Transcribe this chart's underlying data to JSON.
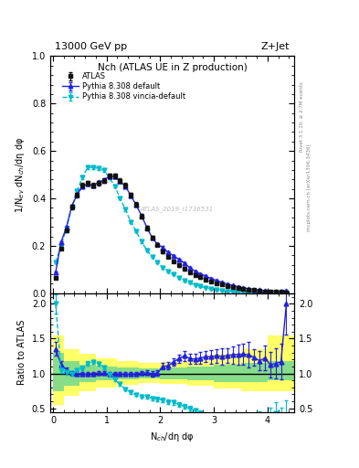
{
  "title_left": "13000 GeV pp",
  "title_right": "Z+Jet",
  "plot_title": "Nch (ATLAS UE in Z production)",
  "ylabel_main": "1/N$_{ev}$ dN$_{ch}$/dη dφ",
  "ylabel_ratio": "Ratio to ATLAS",
  "xlabel": "N$_{ch}$/dη dφ",
  "right_label_top": "Rivet 3.1.10, ≥ 2.7M events",
  "right_label_bot": "mcplots.cern.ch [arXiv:1306.3436]",
  "watermark": "ATLAS_2019_I1736531",
  "legend": [
    "ATLAS",
    "Pythia 8.308 default",
    "Pythia 8.308 vincia-default"
  ],
  "atlas_x": [
    0.05,
    0.15,
    0.25,
    0.35,
    0.45,
    0.55,
    0.65,
    0.75,
    0.85,
    0.95,
    1.05,
    1.15,
    1.25,
    1.35,
    1.45,
    1.55,
    1.65,
    1.75,
    1.85,
    1.95,
    2.05,
    2.15,
    2.25,
    2.35,
    2.45,
    2.55,
    2.65,
    2.75,
    2.85,
    2.95,
    3.05,
    3.15,
    3.25,
    3.35,
    3.45,
    3.55,
    3.65,
    3.75,
    3.85,
    3.95,
    4.05,
    4.15,
    4.25,
    4.35
  ],
  "atlas_y": [
    0.065,
    0.19,
    0.265,
    0.365,
    0.415,
    0.455,
    0.465,
    0.455,
    0.465,
    0.475,
    0.495,
    0.495,
    0.475,
    0.455,
    0.415,
    0.375,
    0.325,
    0.275,
    0.235,
    0.205,
    0.175,
    0.155,
    0.135,
    0.118,
    0.102,
    0.089,
    0.077,
    0.067,
    0.058,
    0.05,
    0.043,
    0.037,
    0.031,
    0.026,
    0.022,
    0.018,
    0.015,
    0.013,
    0.011,
    0.009,
    0.008,
    0.007,
    0.006,
    0.005
  ],
  "atlas_yerr": [
    0.004,
    0.007,
    0.008,
    0.009,
    0.009,
    0.01,
    0.01,
    0.01,
    0.01,
    0.01,
    0.01,
    0.01,
    0.01,
    0.01,
    0.009,
    0.009,
    0.008,
    0.008,
    0.007,
    0.007,
    0.006,
    0.006,
    0.005,
    0.005,
    0.005,
    0.004,
    0.004,
    0.004,
    0.003,
    0.003,
    0.003,
    0.003,
    0.002,
    0.002,
    0.002,
    0.002,
    0.002,
    0.001,
    0.001,
    0.001,
    0.001,
    0.001,
    0.001,
    0.001
  ],
  "py8_x": [
    0.05,
    0.15,
    0.25,
    0.35,
    0.45,
    0.55,
    0.65,
    0.75,
    0.85,
    0.95,
    1.05,
    1.15,
    1.25,
    1.35,
    1.45,
    1.55,
    1.65,
    1.75,
    1.85,
    1.95,
    2.05,
    2.15,
    2.25,
    2.35,
    2.45,
    2.55,
    2.65,
    2.75,
    2.85,
    2.95,
    3.05,
    3.15,
    3.25,
    3.35,
    3.45,
    3.55,
    3.65,
    3.75,
    3.85,
    3.95,
    4.05,
    4.15,
    4.25,
    4.35
  ],
  "py8_y": [
    0.088,
    0.215,
    0.278,
    0.368,
    0.415,
    0.452,
    0.461,
    0.455,
    0.468,
    0.477,
    0.494,
    0.492,
    0.472,
    0.452,
    0.412,
    0.373,
    0.328,
    0.278,
    0.234,
    0.206,
    0.193,
    0.172,
    0.158,
    0.143,
    0.128,
    0.108,
    0.093,
    0.082,
    0.072,
    0.062,
    0.054,
    0.046,
    0.039,
    0.033,
    0.028,
    0.023,
    0.019,
    0.016,
    0.013,
    0.011,
    0.009,
    0.008,
    0.007,
    0.01
  ],
  "py8_yerr": [
    0.003,
    0.005,
    0.006,
    0.007,
    0.007,
    0.007,
    0.007,
    0.007,
    0.007,
    0.007,
    0.007,
    0.007,
    0.007,
    0.007,
    0.006,
    0.006,
    0.006,
    0.005,
    0.005,
    0.005,
    0.005,
    0.005,
    0.004,
    0.004,
    0.004,
    0.004,
    0.003,
    0.003,
    0.003,
    0.003,
    0.002,
    0.002,
    0.002,
    0.002,
    0.002,
    0.001,
    0.001,
    0.001,
    0.001,
    0.001,
    0.001,
    0.001,
    0.001,
    0.001
  ],
  "vincia_x": [
    0.05,
    0.15,
    0.25,
    0.35,
    0.45,
    0.55,
    0.65,
    0.75,
    0.85,
    0.95,
    1.05,
    1.15,
    1.25,
    1.35,
    1.45,
    1.55,
    1.65,
    1.75,
    1.85,
    1.95,
    2.05,
    2.15,
    2.25,
    2.35,
    2.45,
    2.55,
    2.65,
    2.75,
    2.85,
    2.95,
    3.05,
    3.15,
    3.25,
    3.35,
    3.45,
    3.55,
    3.65,
    3.75,
    3.85,
    3.95,
    4.05,
    4.15,
    4.25,
    4.35
  ],
  "vincia_y": [
    0.13,
    0.2,
    0.272,
    0.363,
    0.432,
    0.49,
    0.532,
    0.53,
    0.528,
    0.518,
    0.488,
    0.452,
    0.402,
    0.353,
    0.302,
    0.262,
    0.218,
    0.182,
    0.152,
    0.13,
    0.108,
    0.092,
    0.079,
    0.065,
    0.054,
    0.044,
    0.036,
    0.029,
    0.023,
    0.018,
    0.014,
    0.011,
    0.009,
    0.008,
    0.007,
    0.006,
    0.005,
    0.004,
    0.004,
    0.003,
    0.003,
    0.003,
    0.002,
    0.002
  ],
  "vincia_yerr": [
    0.004,
    0.006,
    0.007,
    0.007,
    0.007,
    0.007,
    0.007,
    0.007,
    0.007,
    0.007,
    0.007,
    0.007,
    0.006,
    0.006,
    0.006,
    0.005,
    0.005,
    0.005,
    0.004,
    0.004,
    0.004,
    0.004,
    0.003,
    0.003,
    0.003,
    0.003,
    0.002,
    0.002,
    0.002,
    0.002,
    0.002,
    0.001,
    0.001,
    0.001,
    0.001,
    0.001,
    0.001,
    0.001,
    0.001,
    0.001,
    0.001,
    0.001,
    0.001,
    0.001
  ],
  "band_edges": [
    0.0,
    0.2,
    0.5,
    0.8,
    1.2,
    1.6,
    2.0,
    2.5,
    3.0,
    3.5,
    4.0,
    4.5
  ],
  "green_lo": [
    0.75,
    0.82,
    0.88,
    0.9,
    0.92,
    0.93,
    0.92,
    0.9,
    0.88,
    0.88,
    0.9,
    0.9
  ],
  "green_hi": [
    1.3,
    1.18,
    1.12,
    1.1,
    1.08,
    1.07,
    1.08,
    1.1,
    1.12,
    1.15,
    1.18,
    1.18
  ],
  "yellow_lo": [
    0.55,
    0.68,
    0.75,
    0.8,
    0.84,
    0.86,
    0.85,
    0.82,
    0.78,
    0.75,
    0.75,
    0.75
  ],
  "yellow_hi": [
    1.55,
    1.35,
    1.28,
    1.22,
    1.18,
    1.15,
    1.16,
    1.2,
    1.28,
    1.35,
    1.55,
    1.55
  ],
  "color_atlas": "#111111",
  "color_py8": "#2222dd",
  "color_vincia": "#00bbcc",
  "ylim_main": [
    0.0,
    1.0
  ],
  "ylim_ratio": [
    0.45,
    2.15
  ],
  "xlim": [
    -0.05,
    4.5
  ],
  "yticks_main": [
    0.0,
    0.2,
    0.4,
    0.6,
    0.8,
    1.0
  ],
  "yticks_ratio": [
    0.5,
    1.0,
    1.5,
    2.0
  ],
  "xticks": [
    0,
    1,
    2,
    3,
    4
  ]
}
